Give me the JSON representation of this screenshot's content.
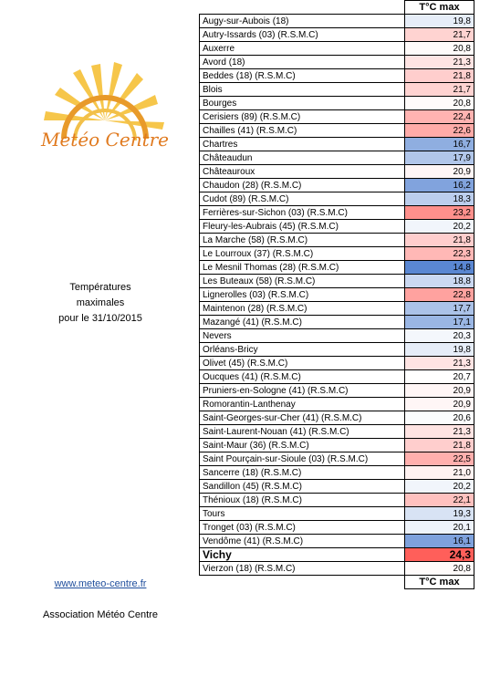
{
  "logo": {
    "text": "Metéo Centre",
    "sun_color": "#f2b33d",
    "text_color": "#e07a1f"
  },
  "caption": {
    "line1": "Températures",
    "line2": "maximales",
    "line3": "pour le 31/10/2015",
    "url": "www.meteo-centre.fr",
    "association": "Association Météo Centre"
  },
  "table": {
    "header": "T°C max",
    "footer": "T°C max",
    "rows": [
      {
        "name": "Augy-sur-Aubois (18)",
        "value": "19,8"
      },
      {
        "name": "Autry-Issards (03) (R.S.M.C)",
        "value": "21,7"
      },
      {
        "name": "Auxerre",
        "value": "20,8"
      },
      {
        "name": "Avord (18)",
        "value": "21,3"
      },
      {
        "name": "Beddes (18) (R.S.M.C)",
        "value": "21,8"
      },
      {
        "name": "Blois",
        "value": "21,7"
      },
      {
        "name": "Bourges",
        "value": "20,8"
      },
      {
        "name": "Cerisiers (89) (R.S.M.C)",
        "value": "22,4"
      },
      {
        "name": "Chailles (41) (R.S.M.C)",
        "value": "22,6"
      },
      {
        "name": "Chartres",
        "value": "16,7"
      },
      {
        "name": "Châteaudun",
        "value": "17,9"
      },
      {
        "name": "Châteauroux",
        "value": "20,9"
      },
      {
        "name": "Chaudon (28) (R.S.M.C)",
        "value": "16,2"
      },
      {
        "name": "Cudot (89) (R.S.M.C)",
        "value": "18,3"
      },
      {
        "name": "Ferrières-sur-Sichon (03) (R.S.M.C)",
        "value": "23,2"
      },
      {
        "name": "Fleury-les-Aubrais (45) (R.S.M.C)",
        "value": "20,2"
      },
      {
        "name": "La Marche (58) (R.S.M.C)",
        "value": "21,8"
      },
      {
        "name": "Le Lourroux (37) (R.S.M.C)",
        "value": "22,3"
      },
      {
        "name": "Le Mesnil Thomas (28) (R.S.M.C)",
        "value": "14,8"
      },
      {
        "name": "Les Buteaux (58) (R.S.M.C)",
        "value": "18,8"
      },
      {
        "name": "Lignerolles (03) (R.S.M.C)",
        "value": "22,8"
      },
      {
        "name": "Maintenon (28) (R.S.M.C)",
        "value": "17,7"
      },
      {
        "name": "Mazangé (41) (R.S.M.C)",
        "value": "17,1"
      },
      {
        "name": "Nevers",
        "value": "20,3"
      },
      {
        "name": "Orléans-Bricy",
        "value": "19,8"
      },
      {
        "name": "Olivet (45) (R.S.M.C)",
        "value": "21,3"
      },
      {
        "name": "Oucques (41) (R.S.M.C)",
        "value": "20,7"
      },
      {
        "name": "Pruniers-en-Sologne (41) (R.S.M.C)",
        "value": "20,9"
      },
      {
        "name": "Romorantin-Lanthenay",
        "value": "20,9"
      },
      {
        "name": "Saint-Georges-sur-Cher (41) (R.S.M.C)",
        "value": "20,6"
      },
      {
        "name": "Saint-Laurent-Nouan (41) (R.S.M.C)",
        "value": "21,3"
      },
      {
        "name": "Saint-Maur (36) (R.S.M.C)",
        "value": "21,8"
      },
      {
        "name": "Saint Pourçain-sur-Sioule (03) (R.S.M.C)",
        "value": "22,5"
      },
      {
        "name": "Sancerre (18) (R.S.M.C)",
        "value": "21,0"
      },
      {
        "name": "Sandillon (45) (R.S.M.C)",
        "value": "20,2"
      },
      {
        "name": "Thénioux (18) (R.S.M.C)",
        "value": "22,1"
      },
      {
        "name": "Tours",
        "value": "19,3"
      },
      {
        "name": "Tronget (03) (R.S.M.C)",
        "value": "20,1"
      },
      {
        "name": "Vendôme (41) (R.S.M.C)",
        "value": "16,1"
      },
      {
        "name": "Vichy",
        "value": "24,3",
        "highlight": true
      },
      {
        "name": "Vierzon (18) (R.S.M.C)",
        "value": "20,8"
      }
    ]
  }
}
